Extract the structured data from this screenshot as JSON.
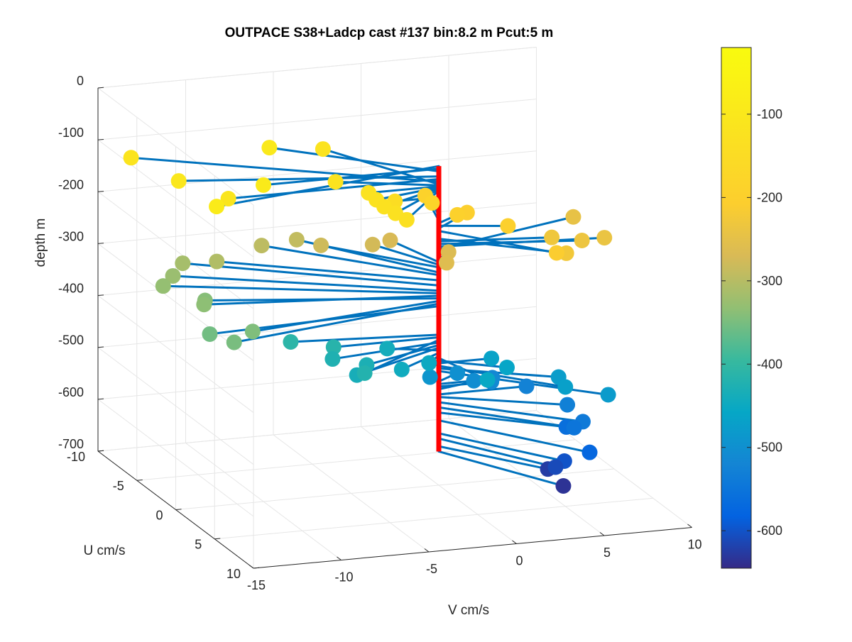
{
  "chart_data": {
    "type": "scatter",
    "variant": "3d-stem-hodograph",
    "title": "OUTPACE S38+Ladcp cast #137 bin:8.2 m  Pcut:5 m",
    "xlabel": "V cm/s",
    "ylabel": "U cm/s",
    "zlabel": "depth m",
    "xlim": [
      -15,
      10
    ],
    "ylim": [
      -10,
      10
    ],
    "zlim": [
      -700,
      0
    ],
    "xticks": [
      -15,
      -10,
      -5,
      0,
      5,
      10
    ],
    "yticks": [
      -10,
      -5,
      0,
      5,
      10
    ],
    "zticks": [
      -700,
      -600,
      -500,
      -400,
      -300,
      -200,
      -100,
      0
    ],
    "colorbar": {
      "colormap": "parula",
      "clim": [
        -645,
        -20
      ],
      "ticks": [
        -600,
        -500,
        -400,
        -300,
        -200,
        -100
      ]
    },
    "stem_color": "#0072bd",
    "axis_line_color": "#ff0000",
    "grid": true,
    "marker_color_variable": "depth",
    "points": [
      {
        "v": -14,
        "u": 3,
        "depth": -85
      },
      {
        "v": -10,
        "u": 0,
        "depth": -90
      },
      {
        "v": -7,
        "u": -6,
        "depth": -95
      },
      {
        "v": -13.5,
        "u": -3,
        "depth": -105
      },
      {
        "v": -12,
        "u": 0,
        "depth": -110
      },
      {
        "v": -14,
        "u": -8,
        "depth": -115
      },
      {
        "v": -3.5,
        "u": -7,
        "depth": -120
      },
      {
        "v": -5,
        "u": -2,
        "depth": -122
      },
      {
        "v": -4,
        "u": 0,
        "depth": -124
      },
      {
        "v": -4,
        "u": 1,
        "depth": -126
      },
      {
        "v": -4,
        "u": 2,
        "depth": -128
      },
      {
        "v": -3.8,
        "u": 3,
        "depth": -130
      },
      {
        "v": -3.6,
        "u": 4,
        "depth": -132
      },
      {
        "v": -2.5,
        "u": 0,
        "depth": -145
      },
      {
        "v": 0.5,
        "u": -2,
        "depth": -180
      },
      {
        "v": 1,
        "u": -4,
        "depth": -190
      },
      {
        "v": 1.5,
        "u": -1,
        "depth": -195
      },
      {
        "v": 2.5,
        "u": -2,
        "depth": -205
      },
      {
        "v": 3.5,
        "u": 1,
        "depth": -200
      },
      {
        "v": 4.5,
        "u": 5,
        "depth": -210
      },
      {
        "v": 5.5,
        "u": 4,
        "depth": -225
      },
      {
        "v": 6,
        "u": 1,
        "depth": -230
      },
      {
        "v": 7.5,
        "u": 1.5,
        "depth": -235
      },
      {
        "v": 9,
        "u": 1,
        "depth": -240
      },
      {
        "v": 9,
        "u": -3,
        "depth": -245
      },
      {
        "v": 0,
        "u": 1,
        "depth": -260
      },
      {
        "v": 1,
        "u": -1,
        "depth": -265
      },
      {
        "v": -1,
        "u": -4,
        "depth": -270
      },
      {
        "v": -2,
        "u": -4,
        "depth": -275
      },
      {
        "v": -4.5,
        "u": -5,
        "depth": -280
      },
      {
        "v": -5,
        "u": -7,
        "depth": -290
      },
      {
        "v": -7,
        "u": -7,
        "depth": -295
      },
      {
        "v": -10,
        "u": -6,
        "depth": -305
      },
      {
        "v": -11.5,
        "u": -7,
        "depth": -315
      },
      {
        "v": -12.5,
        "u": -6,
        "depth": -325
      },
      {
        "v": -13.5,
        "u": -5,
        "depth": -330
      },
      {
        "v": -12.5,
        "u": -2,
        "depth": -335
      },
      {
        "v": -12,
        "u": -3,
        "depth": -340
      },
      {
        "v": -11.5,
        "u": 2,
        "depth": -345
      },
      {
        "v": -13,
        "u": 3,
        "depth": -350
      },
      {
        "v": -13.5,
        "u": 1,
        "depth": -355
      },
      {
        "v": -8,
        "u": -1,
        "depth": -410
      },
      {
        "v": -6,
        "u": 0,
        "depth": -415
      },
      {
        "v": -6,
        "u": 4,
        "depth": -420
      },
      {
        "v": -6.5,
        "u": 1,
        "depth": -425
      },
      {
        "v": -5,
        "u": 2,
        "depth": -430
      },
      {
        "v": -6,
        "u": 3,
        "depth": -435
      },
      {
        "v": -2.5,
        "u": -1,
        "depth": -440
      },
      {
        "v": -3,
        "u": 2,
        "depth": -445
      },
      {
        "v": -1,
        "u": 1,
        "depth": -450
      },
      {
        "v": 1,
        "u": 4,
        "depth": -455
      },
      {
        "v": 3,
        "u": 2,
        "depth": -460
      },
      {
        "v": 3,
        "u": 0,
        "depth": -465
      },
      {
        "v": 5,
        "u": 5,
        "depth": -470
      },
      {
        "v": 5.5,
        "u": 3,
        "depth": -475
      },
      {
        "v": 7,
        "u": 6,
        "depth": -480
      },
      {
        "v": -0.5,
        "u": 0,
        "depth": -490
      },
      {
        "v": 1.5,
        "u": -1,
        "depth": -500
      },
      {
        "v": 2,
        "u": 0,
        "depth": -505
      },
      {
        "v": 3,
        "u": 0,
        "depth": -510
      },
      {
        "v": 3.5,
        "u": -1,
        "depth": -515
      },
      {
        "v": 5,
        "u": 0,
        "depth": -525
      },
      {
        "v": 6,
        "u": 3,
        "depth": -530
      },
      {
        "v": 6,
        "u": 5,
        "depth": -540
      },
      {
        "v": 5.5,
        "u": 5,
        "depth": -550
      },
      {
        "v": 5.5,
        "u": 4,
        "depth": -560
      },
      {
        "v": 5.5,
        "u": 7,
        "depth": -575
      },
      {
        "v": 4.5,
        "u": 6,
        "depth": -600
      },
      {
        "v": 4,
        "u": 6,
        "depth": -610
      },
      {
        "v": 4,
        "u": 5,
        "depth": -625
      },
      {
        "v": 4,
        "u": 7,
        "depth": -635
      }
    ]
  }
}
